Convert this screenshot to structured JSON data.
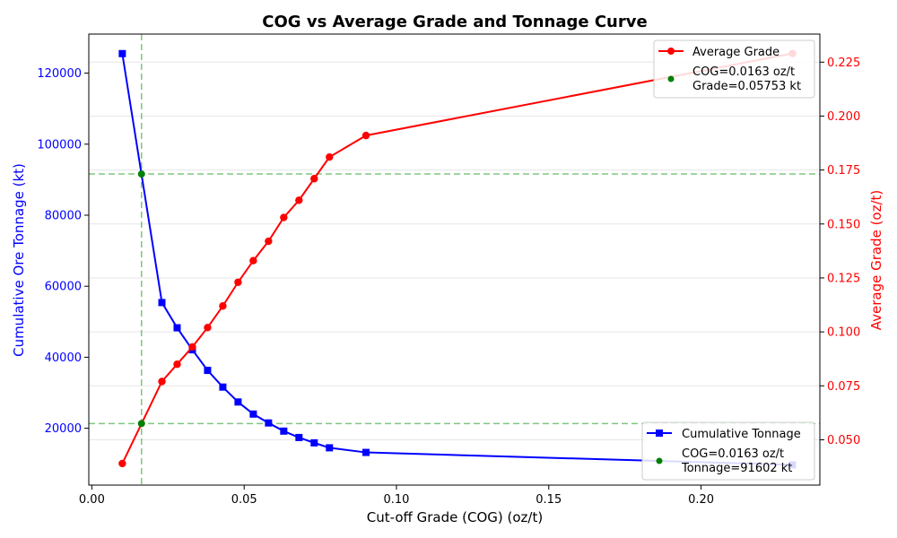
{
  "chart_data": {
    "type": "line",
    "title": "COG vs Average Grade and Tonnage Curve",
    "xlabel": "Cut-off Grade (COG) (oz/t)",
    "ylabel_left": "Cumulative Ore Tonnage (kt)",
    "ylabel_right": "Average Grade (oz/t)",
    "xlim": [
      -0.001,
      0.239
    ],
    "ylim_left": [
      4000,
      131000
    ],
    "ylim_right": [
      0.029,
      0.238
    ],
    "x_ticks": [
      0.0,
      0.05,
      0.1,
      0.15,
      0.2
    ],
    "x_tick_labels": [
      "0.00",
      "0.05",
      "0.10",
      "0.15",
      "0.20"
    ],
    "y_left_ticks": [
      20000,
      40000,
      60000,
      80000,
      100000,
      120000
    ],
    "y_left_tick_labels": [
      "20000",
      "40000",
      "60000",
      "80000",
      "100000",
      "120000"
    ],
    "y_right_ticks": [
      0.05,
      0.075,
      0.1,
      0.125,
      0.15,
      0.175,
      0.2,
      0.225
    ],
    "y_right_tick_labels": [
      "0.050",
      "0.075",
      "0.100",
      "0.125",
      "0.150",
      "0.175",
      "0.200",
      "0.225"
    ],
    "grid": "horizontal-light",
    "series": [
      {
        "name": "Cumulative Tonnage",
        "axis": "left",
        "color": "#0000ff",
        "marker": "square",
        "x": [
          0.01,
          0.023,
          0.028,
          0.033,
          0.038,
          0.043,
          0.048,
          0.053,
          0.058,
          0.063,
          0.068,
          0.073,
          0.078,
          0.09,
          0.23
        ],
        "y": [
          125500,
          55400,
          48300,
          42100,
          36300,
          31600,
          27400,
          24000,
          21500,
          19200,
          17400,
          15900,
          14500,
          13200,
          9700
        ]
      },
      {
        "name": "Average Grade",
        "axis": "right",
        "color": "#ff0000",
        "marker": "circle",
        "x": [
          0.01,
          0.023,
          0.028,
          0.033,
          0.038,
          0.043,
          0.048,
          0.053,
          0.058,
          0.063,
          0.068,
          0.073,
          0.078,
          0.09,
          0.23
        ],
        "y": [
          0.039,
          0.077,
          0.085,
          0.093,
          0.102,
          0.112,
          0.123,
          0.133,
          0.142,
          0.153,
          0.161,
          0.171,
          0.181,
          0.191,
          0.229
        ]
      }
    ],
    "reference_lines": {
      "color": "#2ca02c",
      "vertical_x": 0.0163,
      "horizontal_left_y": 91602,
      "horizontal_right_y": 0.05753
    },
    "cog_points": [
      {
        "axis": "left",
        "x": 0.0163,
        "y": 91602,
        "color": "#008000"
      },
      {
        "axis": "right",
        "x": 0.0163,
        "y": 0.05753,
        "color": "#008000"
      }
    ],
    "legends": {
      "top_right": {
        "placement": "top-right",
        "entries": [
          {
            "label": "Average Grade",
            "color": "#ff0000",
            "kind": "line-circle"
          },
          {
            "label_line1": "COG=0.0163 oz/t",
            "label_line2": "Grade=0.05753 kt",
            "color": "#008000",
            "kind": "dot"
          }
        ]
      },
      "bottom_right": {
        "placement": "bottom-right",
        "entries": [
          {
            "label": "Cumulative Tonnage",
            "color": "#0000ff",
            "kind": "line-square"
          },
          {
            "label_line1": "COG=0.0163 oz/t",
            "label_line2": "Tonnage=91602 kt",
            "color": "#008000",
            "kind": "dot"
          }
        ]
      }
    },
    "colors": {
      "left_axis": "#0000ff",
      "right_axis": "#ff0000",
      "text": "#000000"
    }
  }
}
